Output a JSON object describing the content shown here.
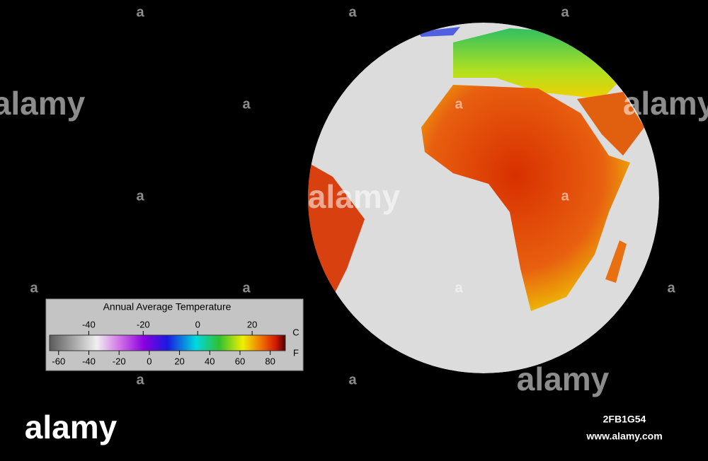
{
  "legend": {
    "title": "Annual Average Temperature",
    "celsius": {
      "unit": "C",
      "xlim": [
        -54.4,
        32.2
      ],
      "ticks": [
        -40,
        -20,
        0,
        20
      ]
    },
    "fahrenheit": {
      "unit": "F",
      "xlim": [
        -66,
        90
      ],
      "ticks": [
        -60,
        -40,
        -20,
        0,
        20,
        40,
        60,
        80
      ]
    }
  },
  "watermark": {
    "logo": "alamy",
    "mark": "a",
    "image_id": "2FB1G54",
    "url": "www.alamy.com"
  }
}
